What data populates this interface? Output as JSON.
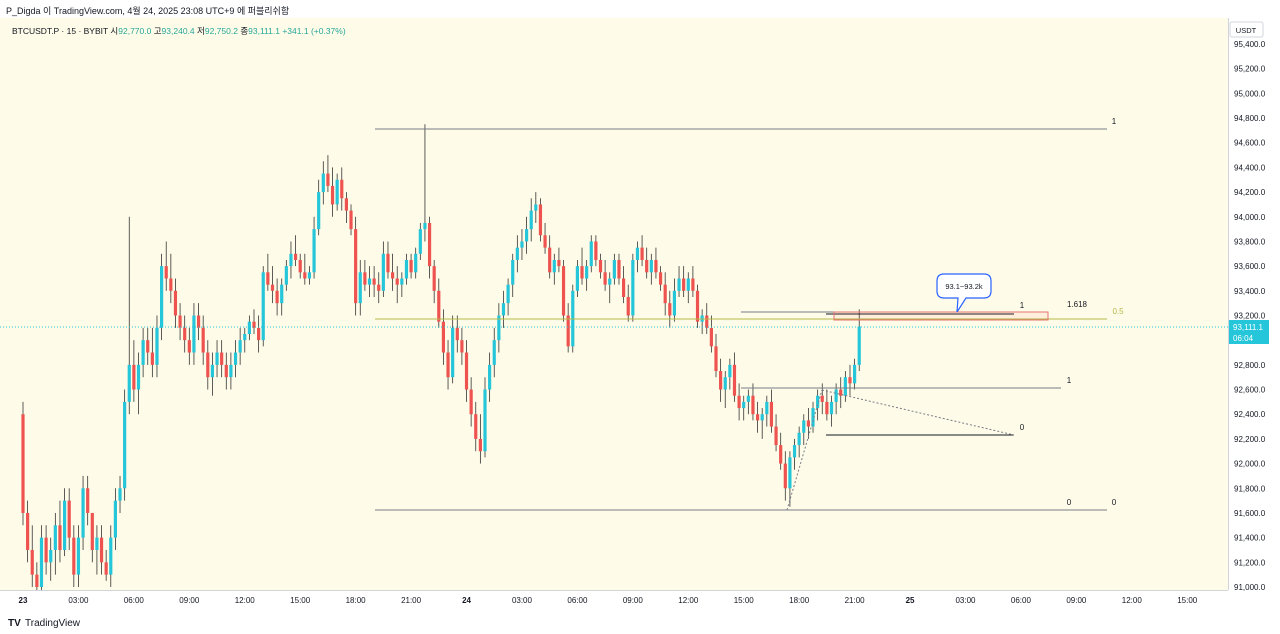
{
  "header": {
    "text": "P_Digda 이 TradingView.com, 4월 24, 2025 23:08 UTC+9 에 퍼블리쉬함"
  },
  "legend": {
    "symbol": "BTCUSDT.P · 15 · BYBIT",
    "open_label": "시",
    "open": "92,770.0",
    "high_label": "고",
    "high": "93,240.4",
    "low_label": "저",
    "low": "92,750.2",
    "close_label": "종",
    "close": "93,111.1",
    "change": "+341.1 (+0.37%)"
  },
  "price_axis": {
    "currency": "USDT",
    "ticks": [
      "95,400.0",
      "95,200.0",
      "95,000.0",
      "94,800.0",
      "94,600.0",
      "94,400.0",
      "94,200.0",
      "94,000.0",
      "93,800.0",
      "93,600.0",
      "93,400.0",
      "93,200.0",
      "92,800.0",
      "92,600.0",
      "92,400.0",
      "92,200.0",
      "92,000.0",
      "91,800.0",
      "91,600.0",
      "91,400.0",
      "91,200.0",
      "91,000.0"
    ],
    "current_price": "93,111.1",
    "countdown": "06:04"
  },
  "time_axis": {
    "labels": [
      "23",
      "03:00",
      "06:00",
      "09:00",
      "12:00",
      "15:00",
      "18:00",
      "21:00",
      "24",
      "03:00",
      "06:00",
      "09:00",
      "12:00",
      "15:00",
      "18:00",
      "21:00",
      "25",
      "03:00",
      "06:00",
      "09:00",
      "12:00",
      "15:00"
    ]
  },
  "annotations": {
    "callout": "93.1~93.2k",
    "fib_labels": [
      "1",
      "0",
      "0",
      "1",
      "0",
      "1",
      "1.618",
      "0.5"
    ]
  },
  "colors": {
    "up": "#26c6da",
    "down": "#ef5350",
    "background": "#fefce8",
    "fib_half": "#b5b84a",
    "box": "#e57373"
  },
  "footer": {
    "brand": "TradingView",
    "logo": "TV"
  },
  "chart_data": {
    "type": "candlestick",
    "title": "BTCUSDT.P · 15 · BYBIT",
    "ylim": [
      91000,
      95450
    ],
    "x_unit": "bars (15m) from 2025-04-23 00:00",
    "candles": [
      [
        92400,
        92500,
        91500,
        91600
      ],
      [
        91600,
        91700,
        91200,
        91300
      ],
      [
        91300,
        91500,
        91000,
        91100
      ],
      [
        91100,
        91200,
        90900,
        91000
      ],
      [
        91000,
        91500,
        90950,
        91400
      ],
      [
        91400,
        91500,
        91100,
        91200
      ],
      [
        91200,
        91400,
        91050,
        91300
      ],
      [
        91300,
        91600,
        91100,
        91500
      ],
      [
        91500,
        91700,
        91200,
        91300
      ],
      [
        91300,
        91800,
        91250,
        91700
      ],
      [
        91700,
        91800,
        91300,
        91400
      ],
      [
        91400,
        91500,
        91000,
        91100
      ],
      [
        91100,
        91500,
        91000,
        91400
      ],
      [
        91400,
        91900,
        91300,
        91800
      ],
      [
        91800,
        91900,
        91500,
        91600
      ],
      [
        91600,
        91600,
        91200,
        91300
      ],
      [
        91300,
        91500,
        91100,
        91400
      ],
      [
        91400,
        91500,
        91100,
        91200
      ],
      [
        91200,
        91300,
        91050,
        91100
      ],
      [
        91100,
        91500,
        91000,
        91400
      ],
      [
        91400,
        91800,
        91300,
        91700
      ],
      [
        91700,
        91900,
        91600,
        91800
      ],
      [
        91800,
        92600,
        91700,
        92500
      ],
      [
        92500,
        94000,
        92400,
        92800
      ],
      [
        92800,
        93000,
        92500,
        92600
      ],
      [
        92600,
        92900,
        92400,
        92800
      ],
      [
        92800,
        93100,
        92700,
        93000
      ],
      [
        93000,
        93100,
        92800,
        92900
      ],
      [
        92900,
        93100,
        92700,
        92800
      ],
      [
        92800,
        93200,
        92700,
        93100
      ],
      [
        93100,
        93700,
        93000,
        93600
      ],
      [
        93600,
        93800,
        93400,
        93500
      ],
      [
        93500,
        93700,
        93300,
        93400
      ],
      [
        93400,
        93500,
        93100,
        93200
      ],
      [
        93200,
        93300,
        93000,
        93100
      ],
      [
        93100,
        93200,
        92900,
        93000
      ],
      [
        93000,
        93100,
        92800,
        92900
      ],
      [
        92900,
        93300,
        92800,
        93200
      ],
      [
        93200,
        93300,
        93000,
        93100
      ],
      [
        93100,
        93200,
        92800,
        92900
      ],
      [
        92900,
        93000,
        92600,
        92700
      ],
      [
        92700,
        92900,
        92550,
        92800
      ],
      [
        92800,
        93000,
        92700,
        92900
      ],
      [
        92900,
        93000,
        92700,
        92800
      ],
      [
        92800,
        92900,
        92600,
        92700
      ],
      [
        92700,
        92900,
        92600,
        92800
      ],
      [
        92800,
        93000,
        92700,
        92900
      ],
      [
        92900,
        93100,
        92800,
        93000
      ],
      [
        93000,
        93100,
        92900,
        93050
      ],
      [
        93050,
        93200,
        93000,
        93150
      ],
      [
        93150,
        93250,
        93050,
        93100
      ],
      [
        93100,
        93200,
        92900,
        93000
      ],
      [
        93000,
        93600,
        92950,
        93550
      ],
      [
        93550,
        93700,
        93400,
        93450
      ],
      [
        93450,
        93600,
        93300,
        93400
      ],
      [
        93400,
        93500,
        93200,
        93300
      ],
      [
        93300,
        93500,
        93200,
        93450
      ],
      [
        93450,
        93650,
        93400,
        93600
      ],
      [
        93600,
        93800,
        93500,
        93700
      ],
      [
        93700,
        93850,
        93600,
        93650
      ],
      [
        93650,
        93700,
        93500,
        93550
      ],
      [
        93550,
        93700,
        93450,
        93500
      ],
      [
        93500,
        93600,
        93450,
        93550
      ],
      [
        93550,
        94000,
        93500,
        93900
      ],
      [
        93900,
        94300,
        93850,
        94200
      ],
      [
        94200,
        94450,
        94100,
        94350
      ],
      [
        94350,
        94500,
        94200,
        94250
      ],
      [
        94250,
        94400,
        94000,
        94100
      ],
      [
        94100,
        94350,
        94050,
        94300
      ],
      [
        94300,
        94400,
        94050,
        94150
      ],
      [
        94150,
        94200,
        93950,
        94050
      ],
      [
        94050,
        94100,
        93850,
        93900
      ],
      [
        93900,
        94000,
        93200,
        93300
      ],
      [
        93300,
        93650,
        93200,
        93550
      ],
      [
        93550,
        93650,
        93400,
        93450
      ],
      [
        93450,
        93600,
        93350,
        93500
      ],
      [
        93500,
        93600,
        93350,
        93450
      ],
      [
        93450,
        93550,
        93300,
        93400
      ],
      [
        93400,
        93800,
        93350,
        93700
      ],
      [
        93700,
        93800,
        93500,
        93550
      ],
      [
        93550,
        93700,
        93400,
        93500
      ],
      [
        93500,
        93600,
        93300,
        93450
      ],
      [
        93450,
        93550,
        93350,
        93500
      ],
      [
        93500,
        93700,
        93450,
        93650
      ],
      [
        93650,
        93700,
        93500,
        93550
      ],
      [
        93550,
        93750,
        93500,
        93700
      ],
      [
        93700,
        93950,
        93650,
        93900
      ],
      [
        93900,
        94750,
        93800,
        93950
      ],
      [
        93950,
        94000,
        93500,
        93600
      ],
      [
        93600,
        93650,
        93300,
        93400
      ],
      [
        93400,
        93500,
        93100,
        93150
      ],
      [
        93150,
        93250,
        92800,
        92900
      ],
      [
        92900,
        93000,
        92600,
        92700
      ],
      [
        92700,
        93200,
        92650,
        93100
      ],
      [
        93100,
        93200,
        92900,
        93000
      ],
      [
        93000,
        93100,
        92800,
        92900
      ],
      [
        92900,
        93000,
        92500,
        92600
      ],
      [
        92600,
        92700,
        92300,
        92400
      ],
      [
        92400,
        92500,
        92100,
        92200
      ],
      [
        92200,
        92400,
        92000,
        92100
      ],
      [
        92100,
        92700,
        92050,
        92600
      ],
      [
        92600,
        92900,
        92500,
        92800
      ],
      [
        92800,
        93100,
        92700,
        93000
      ],
      [
        93000,
        93300,
        92900,
        93200
      ],
      [
        93200,
        93400,
        93100,
        93300
      ],
      [
        93300,
        93500,
        93200,
        93450
      ],
      [
        93450,
        93700,
        93350,
        93650
      ],
      [
        93650,
        93850,
        93550,
        93750
      ],
      [
        93750,
        93900,
        93650,
        93800
      ],
      [
        93800,
        94000,
        93700,
        93900
      ],
      [
        93900,
        94150,
        93800,
        94050
      ],
      [
        94050,
        94200,
        93950,
        94100
      ],
      [
        94100,
        94150,
        93800,
        93850
      ],
      [
        93850,
        93950,
        93700,
        93750
      ],
      [
        93750,
        93850,
        93500,
        93550
      ],
      [
        93550,
        93700,
        93450,
        93650
      ],
      [
        93650,
        93750,
        93550,
        93600
      ],
      [
        93600,
        93650,
        93150,
        93200
      ],
      [
        93200,
        93300,
        92900,
        92950
      ],
      [
        92950,
        93450,
        92900,
        93400
      ],
      [
        93400,
        93650,
        93350,
        93600
      ],
      [
        93600,
        93750,
        93450,
        93500
      ],
      [
        93500,
        93650,
        93400,
        93600
      ],
      [
        93600,
        93850,
        93550,
        93800
      ],
      [
        93800,
        93850,
        93600,
        93650
      ],
      [
        93650,
        93700,
        93500,
        93550
      ],
      [
        93550,
        93650,
        93400,
        93450
      ],
      [
        93450,
        93550,
        93300,
        93500
      ],
      [
        93500,
        93700,
        93450,
        93650
      ],
      [
        93650,
        93700,
        93450,
        93500
      ],
      [
        93500,
        93600,
        93300,
        93350
      ],
      [
        93350,
        93450,
        93150,
        93200
      ],
      [
        93200,
        93700,
        93150,
        93650
      ],
      [
        93650,
        93800,
        93550,
        93750
      ],
      [
        93750,
        93850,
        93600,
        93650
      ],
      [
        93650,
        93750,
        93500,
        93550
      ],
      [
        93550,
        93700,
        93450,
        93650
      ],
      [
        93650,
        93750,
        93500,
        93550
      ],
      [
        93550,
        93600,
        93400,
        93450
      ],
      [
        93450,
        93550,
        93200,
        93300
      ],
      [
        93300,
        93400,
        93100,
        93200
      ],
      [
        93200,
        93500,
        93150,
        93400
      ],
      [
        93400,
        93600,
        93350,
        93500
      ],
      [
        93500,
        93600,
        93350,
        93400
      ],
      [
        93400,
        93550,
        93300,
        93500
      ],
      [
        93500,
        93600,
        93350,
        93400
      ],
      [
        93400,
        93450,
        93100,
        93150
      ],
      [
        93150,
        93250,
        93050,
        93200
      ],
      [
        93200,
        93300,
        93050,
        93100
      ],
      [
        93100,
        93200,
        92900,
        92950
      ],
      [
        92950,
        93050,
        92700,
        92750
      ],
      [
        92750,
        92850,
        92500,
        92600
      ],
      [
        92600,
        92750,
        92450,
        92700
      ],
      [
        92700,
        92850,
        92600,
        92800
      ],
      [
        92800,
        92900,
        92500,
        92550
      ],
      [
        92550,
        92650,
        92350,
        92450
      ],
      [
        92450,
        92550,
        92350,
        92500
      ],
      [
        92500,
        92600,
        92400,
        92550
      ],
      [
        92550,
        92650,
        92350,
        92400
      ],
      [
        92400,
        92500,
        92250,
        92350
      ],
      [
        92350,
        92450,
        92200,
        92400
      ],
      [
        92400,
        92550,
        92300,
        92500
      ],
      [
        92500,
        92600,
        92250,
        92300
      ],
      [
        92300,
        92400,
        92100,
        92150
      ],
      [
        92150,
        92250,
        91950,
        92000
      ],
      [
        92000,
        92100,
        91700,
        91800
      ],
      [
        91800,
        92100,
        91650,
        92050
      ],
      [
        92050,
        92200,
        91950,
        92150
      ],
      [
        92150,
        92300,
        92050,
        92250
      ],
      [
        92250,
        92400,
        92150,
        92350
      ],
      [
        92350,
        92450,
        92200,
        92300
      ],
      [
        92300,
        92500,
        92250,
        92450
      ],
      [
        92450,
        92600,
        92350,
        92550
      ],
      [
        92550,
        92650,
        92400,
        92500
      ],
      [
        92500,
        92600,
        92350,
        92400
      ],
      [
        92400,
        92550,
        92300,
        92500
      ],
      [
        92500,
        92650,
        92400,
        92600
      ],
      [
        92600,
        92700,
        92450,
        92550
      ],
      [
        92550,
        92750,
        92500,
        92700
      ],
      [
        92700,
        92800,
        92550,
        92650
      ],
      [
        92650,
        92850,
        92600,
        92800
      ],
      [
        92800,
        93250,
        92750,
        93111
      ]
    ]
  }
}
